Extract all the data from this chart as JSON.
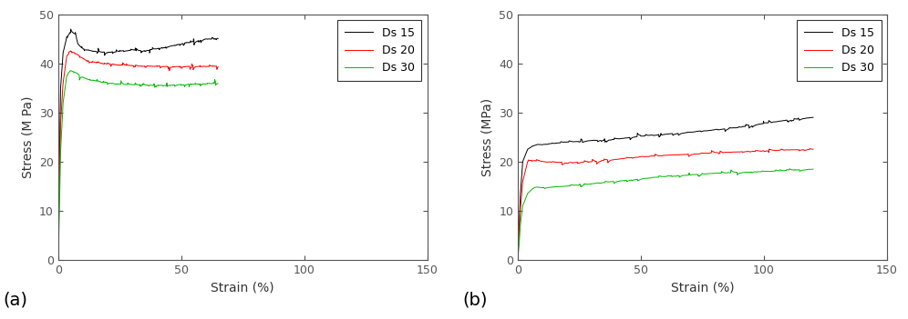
{
  "panel_a": {
    "label": "(a)",
    "ylabel": "Stress (M Pa)",
    "xlabel": "Strain (%)",
    "xlim": [
      0,
      150
    ],
    "ylim": [
      0,
      50
    ],
    "xticks": [
      0,
      50,
      100,
      150
    ],
    "yticks": [
      0,
      10,
      20,
      30,
      40,
      50
    ],
    "series": [
      {
        "name": "Ds 15",
        "color": "#000000",
        "keypoints_x": [
          0,
          0.3,
          0.6,
          1.0,
          2.0,
          3.5,
          5.0,
          7.0,
          8.0,
          10.0,
          15.0,
          20.0,
          25.0,
          30.0,
          35.0,
          40.0,
          45.0,
          50.0,
          55.0,
          60.0,
          65.0
        ],
        "keypoints_y": [
          0,
          10,
          22,
          35,
          42,
          45.5,
          46.5,
          46.0,
          44.0,
          43.0,
          42.5,
          42.3,
          42.5,
          42.8,
          42.6,
          43.0,
          43.5,
          44.0,
          44.5,
          45.0,
          45.2
        ]
      },
      {
        "name": "Ds 20",
        "color": "#ff0000",
        "keypoints_x": [
          0,
          0.3,
          0.6,
          1.0,
          2.0,
          3.5,
          5.0,
          7.0,
          9.0,
          12.0,
          18.0,
          25.0,
          35.0,
          45.0,
          55.0,
          65.0
        ],
        "keypoints_y": [
          0,
          8,
          18,
          28,
          36,
          41.5,
          42.5,
          42.2,
          41.5,
          40.5,
          40.0,
          39.7,
          39.5,
          39.4,
          39.4,
          39.5
        ]
      },
      {
        "name": "Ds 30",
        "color": "#00bb00",
        "keypoints_x": [
          0,
          0.3,
          0.6,
          1.0,
          2.0,
          3.5,
          5.0,
          7.0,
          9.0,
          12.0,
          18.0,
          25.0,
          35.0,
          45.0,
          55.0,
          65.0
        ],
        "keypoints_y": [
          0,
          5,
          12,
          22,
          32,
          37.5,
          38.5,
          38.3,
          37.5,
          36.8,
          36.2,
          35.8,
          35.6,
          35.6,
          35.8,
          36.0
        ]
      }
    ]
  },
  "panel_b": {
    "label": "(b)",
    "ylabel": "Stress (MPa)",
    "xlabel": "Strain (%)",
    "xlim": [
      0,
      150
    ],
    "ylim": [
      0,
      50
    ],
    "xticks": [
      0,
      50,
      100,
      150
    ],
    "yticks": [
      0,
      10,
      20,
      30,
      40,
      50
    ],
    "series": [
      {
        "name": "Ds 15",
        "color": "#000000",
        "keypoints_x": [
          0,
          0.5,
          1.0,
          2.0,
          4.0,
          6.0,
          8.0,
          10.0,
          20.0,
          30.0,
          40.0,
          50.0,
          60.0,
          70.0,
          80.0,
          90.0,
          100.0,
          110.0,
          120.0
        ],
        "keypoints_y": [
          0,
          6,
          13,
          20,
          22.5,
          23.2,
          23.5,
          23.5,
          24.0,
          24.3,
          24.6,
          25.2,
          25.6,
          26.0,
          26.5,
          27.0,
          27.8,
          28.5,
          29.0
        ]
      },
      {
        "name": "Ds 20",
        "color": "#ff0000",
        "keypoints_x": [
          0,
          0.5,
          1.0,
          2.0,
          4.0,
          6.0,
          8.0,
          10.0,
          20.0,
          30.0,
          40.0,
          50.0,
          60.0,
          70.0,
          80.0,
          90.0,
          100.0,
          110.0,
          120.0
        ],
        "keypoints_y": [
          0,
          5,
          10,
          16,
          20.0,
          20.3,
          20.2,
          20.0,
          19.8,
          20.0,
          20.5,
          21.0,
          21.3,
          21.5,
          21.8,
          22.0,
          22.2,
          22.4,
          22.5
        ]
      },
      {
        "name": "Ds 30",
        "color": "#00bb00",
        "keypoints_x": [
          0,
          0.5,
          1.0,
          2.0,
          4.0,
          6.0,
          8.0,
          10.0,
          20.0,
          30.0,
          40.0,
          50.0,
          60.0,
          70.0,
          80.0,
          90.0,
          100.0,
          110.0,
          120.0
        ],
        "keypoints_y": [
          0,
          3,
          7,
          11,
          13.5,
          14.5,
          14.8,
          14.7,
          15.0,
          15.5,
          16.0,
          16.5,
          17.0,
          17.3,
          17.6,
          17.8,
          18.0,
          18.2,
          18.5
        ]
      }
    ]
  },
  "linewidth": 0.7,
  "step_noise_amp_a": 0.15,
  "step_noise_amp_b": 0.12,
  "noise_seed": 7
}
